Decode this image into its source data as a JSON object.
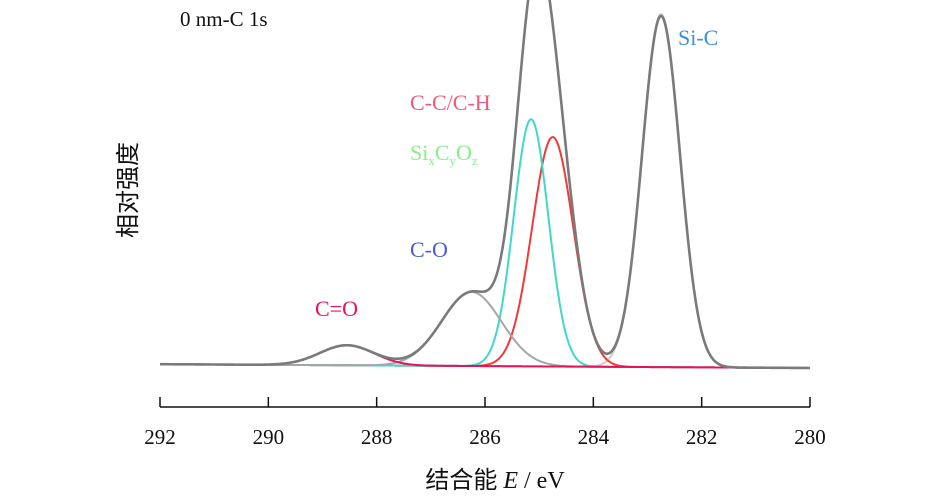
{
  "chart_data": {
    "type": "line",
    "title": "0 nm-C 1s",
    "xlabel": "结合能 E / eV",
    "xlabel_prefix": "结合能",
    "xlabel_var": "E",
    "xlabel_unit": " / eV",
    "ylabel": "相对强度",
    "xlim": [
      292,
      280
    ],
    "ylim": [
      0,
      1
    ],
    "x_ticks": [
      292,
      290,
      288,
      286,
      284,
      282,
      280
    ],
    "grid": false,
    "x_axis_reversed": true,
    "y_ticks_shown": false,
    "curve_colors": {
      "envelope": "#7a7a7a",
      "baseline": "#5a6ad0",
      "si_c": "#cccccc",
      "si_c_o": "#40d9c8",
      "c_c_h": "#f03a3a",
      "c_o": "#a6a6a6",
      "c_eq_o": "#e8125a"
    },
    "components": [
      {
        "label": "Si-C",
        "center": 282.75,
        "height": 1.0,
        "width": 0.35,
        "color": "#3a8fe0"
      },
      {
        "label": "C-C/C-H",
        "center": 284.75,
        "height": 0.65,
        "width": 0.38,
        "color": "#f05a78"
      },
      {
        "label": "SixCyOz",
        "center": 285.15,
        "height": 0.7,
        "width": 0.32,
        "color": "#88ee88"
      },
      {
        "label": "C-O",
        "center": 286.25,
        "height": 0.21,
        "width": 0.55,
        "color": "#4a5ad6"
      },
      {
        "label": "C=O",
        "center": 288.55,
        "height": 0.057,
        "width": 0.5,
        "color": "#e8125a"
      }
    ],
    "component_label_si_c_o": {
      "base1": "Si",
      "sub1": "x",
      "base2": "C",
      "sub2": "y",
      "base3": "O",
      "sub3": "z"
    }
  }
}
